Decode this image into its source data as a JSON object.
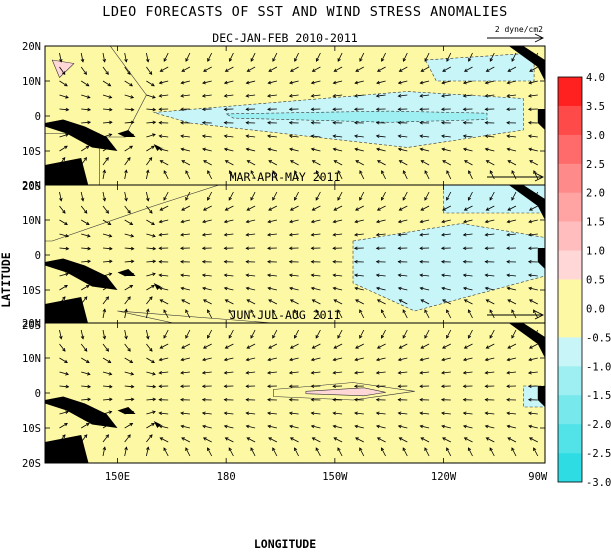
{
  "chart_data": {
    "type": "contour_map",
    "title": "LDEO FORECASTS OF SST AND WIND STRESS ANOMALIES",
    "xlabel": "LONGITUDE",
    "ylabel": "LATITUDE",
    "x_ticks": [
      "150E",
      "180",
      "150W",
      "120W",
      "90W"
    ],
    "y_ticks": [
      "20N",
      "10N",
      "0",
      "10S",
      "20S"
    ],
    "reference_vector_label": "2 dyne/cm2",
    "colorbar": {
      "levels": [
        "4.0",
        "3.5",
        "3.0",
        "2.5",
        "2.0",
        "1.5",
        "1.0",
        "0.5",
        "0.0",
        "-0.5",
        "-1.0",
        "-1.5",
        "-2.0",
        "-2.5",
        "-3.0"
      ],
      "colors": [
        "#ff2020",
        "#ff4a4a",
        "#ff6b6b",
        "#ff8a8a",
        "#ffa3a3",
        "#ffbdbd",
        "#ffd7d7",
        "#fdf8a4",
        "#fdf8a4",
        "#c8f5f8",
        "#9eeff2",
        "#77e9ed",
        "#52e3e8",
        "#2ddde3"
      ],
      "vmin": -3.0,
      "vmax": 4.0
    },
    "panels": [
      {
        "title": "DEC-JAN-FEB 2010-2011",
        "background": "#fdf8a4",
        "regions": [
          {
            "lon": [
              160,
              230,
              262,
              262,
              230,
              170
            ],
            "lat": [
              1,
              7,
              5,
              -4,
              -9,
              -2
            ],
            "level": -0.5
          },
          {
            "lon": [
              235,
              265,
              265,
              238
            ],
            "lat": [
              16,
              18,
              10,
              10
            ],
            "level": -0.5
          },
          {
            "lon": [
              180,
              225,
              252,
              252,
              225,
              182
            ],
            "lat": [
              0.6,
              1.4,
              0.8,
              -1.0,
              -1.8,
              -0.6
            ],
            "level": -1.0
          },
          {
            "lon": [
              130,
              148,
              158,
              152,
              130
            ],
            "lat": [
              20,
              20,
              6,
              -6,
              -6
            ],
            "level": 0.5
          },
          {
            "lon": [
              130,
              145,
              145,
              130
            ],
            "lat": [
              -5,
              -5,
              -20,
              -20
            ],
            "level": 0.5
          },
          {
            "lon": [
              132,
              138,
              134
            ],
            "lat": [
              16,
              15,
              11
            ],
            "level": 1.0
          }
        ]
      },
      {
        "title": "MAR-APR-MAY 2011",
        "background": "#fdf8a4",
        "regions": [
          {
            "lon": [
              130,
              178,
              160,
              132,
              130
            ],
            "lat": [
              20,
              20,
              14,
              4,
              4
            ],
            "level": 0.5
          },
          {
            "lon": [
              215,
              245,
              268,
              268,
              232,
              215
            ],
            "lat": [
              4,
              9,
              5,
              -6,
              -16,
              -8
            ],
            "level": -0.5
          },
          {
            "lon": [
              240,
              268,
              268,
              240
            ],
            "lat": [
              20,
              20,
              12,
              12
            ],
            "level": -0.5
          },
          {
            "lon": [
              150,
              200,
              168
            ],
            "lat": [
              -16,
              -20,
              -20
            ],
            "level": 0.5
          }
        ]
      },
      {
        "title": "JUN-JUL-AUG 2011",
        "background": "#fdf8a4",
        "regions": [
          {
            "lon": [
              193,
              215,
              232,
              215,
              193
            ],
            "lat": [
              1,
              3,
              0.5,
              -2,
              -1
            ],
            "level": 0.5
          },
          {
            "lon": [
              202,
              218,
              224,
              218,
              202
            ],
            "lat": [
              0.5,
              1.5,
              0.2,
              -0.8,
              -0.2
            ],
            "level": 1.0
          },
          {
            "lon": [
              262,
              268,
              268,
              262
            ],
            "lat": [
              2,
              2,
              -4,
              -4
            ],
            "level": -0.5
          }
        ]
      }
    ],
    "lon_range": [
      130,
      268
    ],
    "lat_range": [
      -20,
      20
    ]
  }
}
